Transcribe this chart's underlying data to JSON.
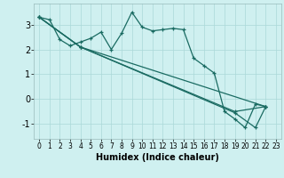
{
  "xlabel": "Humidex (Indice chaleur)",
  "background_color": "#cff0f0",
  "line_color": "#1a6b62",
  "grid_color": "#aad8d8",
  "xlim": [
    -0.5,
    23.5
  ],
  "ylim": [
    -1.6,
    3.85
  ],
  "yticks": [
    -1,
    0,
    1,
    2,
    3
  ],
  "xticks": [
    0,
    1,
    2,
    3,
    4,
    5,
    6,
    7,
    8,
    9,
    10,
    11,
    12,
    13,
    14,
    15,
    16,
    17,
    18,
    19,
    20,
    21,
    22,
    23
  ],
  "line1_x": [
    0,
    1,
    2,
    3,
    4,
    5,
    6,
    7,
    8,
    9,
    10,
    11,
    12,
    13,
    14,
    15,
    16,
    17,
    18,
    19,
    20,
    21,
    22
  ],
  "line1_y": [
    3.3,
    3.2,
    2.4,
    2.15,
    2.3,
    2.45,
    2.7,
    2.0,
    2.65,
    3.5,
    2.9,
    2.75,
    2.8,
    2.85,
    2.8,
    1.65,
    1.35,
    1.05,
    -0.5,
    -0.8,
    -1.15,
    -0.2,
    -0.3
  ],
  "line2_x": [
    0,
    4,
    22
  ],
  "line2_y": [
    3.3,
    2.1,
    -0.3
  ],
  "line3_x": [
    0,
    4,
    19,
    22
  ],
  "line3_y": [
    3.3,
    2.1,
    -0.5,
    -0.3
  ],
  "line4_x": [
    0,
    4,
    19,
    21,
    22
  ],
  "line4_y": [
    3.3,
    2.1,
    -0.55,
    -1.15,
    -0.3
  ]
}
